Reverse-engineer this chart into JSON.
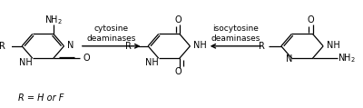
{
  "figsize": [
    4.0,
    1.19
  ],
  "dpi": 100,
  "bg_color": "#ffffff",
  "line_color": "#000000",
  "text_color": "#000000",
  "font_size_struct": 7.0,
  "font_size_arrow": 6.5,
  "font_size_note": 7.0,
  "footnote": "R = H or F",
  "arrow1_label_top": "cytosine",
  "arrow1_label_bot": "deaminases",
  "arrow2_label_top": "isocytosine",
  "arrow2_label_bot": "deaminases"
}
